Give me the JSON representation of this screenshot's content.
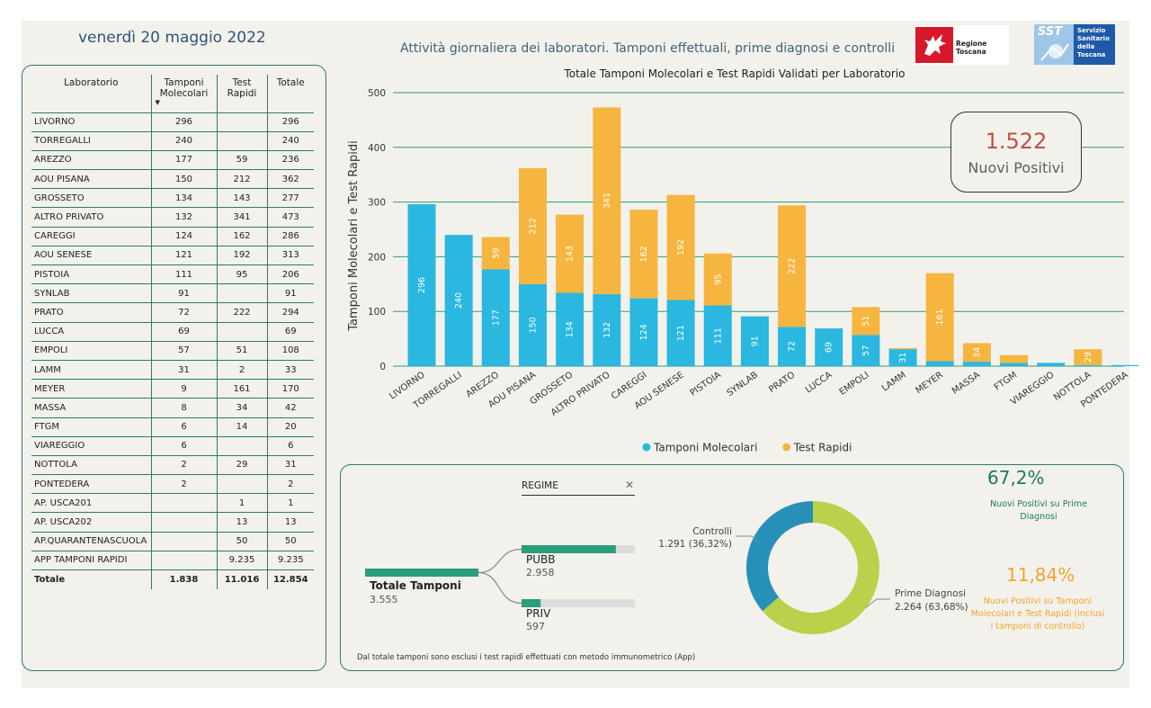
{
  "header": {
    "date": "venerdì 20 maggio 2022",
    "title": "Attività giornaliera dei laboratori. Tamponi effettuali, prime diagnosi e controlli",
    "logo_rt": "Regione Toscana",
    "logo_sst_short": "SST",
    "logo_sst_lines": [
      "Servizio",
      "Sanitario",
      "della",
      "Toscana"
    ]
  },
  "table": {
    "headers": [
      "Laboratorio",
      "Tamponi Molecolari",
      "Test Rapidi",
      "Totale"
    ],
    "rows": [
      [
        "LIVORNO",
        "296",
        "",
        "296"
      ],
      [
        "TORREGALLI",
        "240",
        "",
        "240"
      ],
      [
        "AREZZO",
        "177",
        "59",
        "236"
      ],
      [
        "AOU PISANA",
        "150",
        "212",
        "362"
      ],
      [
        "GROSSETO",
        "134",
        "143",
        "277"
      ],
      [
        "ALTRO PRIVATO",
        "132",
        "341",
        "473"
      ],
      [
        "CAREGGI",
        "124",
        "162",
        "286"
      ],
      [
        "AOU SENESE",
        "121",
        "192",
        "313"
      ],
      [
        "PISTOIA",
        "111",
        "95",
        "206"
      ],
      [
        "SYNLAB",
        "91",
        "",
        "91"
      ],
      [
        "PRATO",
        "72",
        "222",
        "294"
      ],
      [
        "LUCCA",
        "69",
        "",
        "69"
      ],
      [
        "EMPOLI",
        "57",
        "51",
        "108"
      ],
      [
        "LAMM",
        "31",
        "2",
        "33"
      ],
      [
        "MEYER",
        "9",
        "161",
        "170"
      ],
      [
        "MASSA",
        "8",
        "34",
        "42"
      ],
      [
        "FTGM",
        "6",
        "14",
        "20"
      ],
      [
        "VIAREGGIO",
        "6",
        "",
        "6"
      ],
      [
        "NOTTOLA",
        "2",
        "29",
        "31"
      ],
      [
        "PONTEDERA",
        "2",
        "",
        "2"
      ],
      [
        "AP. USCA201",
        "",
        "1",
        "1"
      ],
      [
        "AP. USCA202",
        "",
        "13",
        "13"
      ],
      [
        "AP.QUARANTENASCUOLA",
        "",
        "50",
        "50"
      ],
      [
        "APP TAMPONI RAPIDI",
        "",
        "9.235",
        "9.235"
      ]
    ],
    "total": [
      "Totale",
      "1.838",
      "11.016",
      "12.854"
    ]
  },
  "chart_data": [
    {
      "type": "bar",
      "stacked": true,
      "title": "Totale Tamponi Molecolari e Test Rapidi Validati per Laboratorio",
      "xlabel": "",
      "ylabel": "Tamponi Molecolari e Test Rapidi",
      "ylim": [
        0,
        500
      ],
      "yticks": [
        0,
        100,
        200,
        300,
        400,
        500
      ],
      "grid": true,
      "legend": "bottom",
      "categories": [
        "LIVORNO",
        "TORREGALLI",
        "AREZZO",
        "AOU PISANA",
        "GROSSETO",
        "ALTRO PRIVATO",
        "CAREGGI",
        "AOU SENESE",
        "PISTOIA",
        "SYNLAB",
        "PRATO",
        "LUCCA",
        "EMPOLI",
        "LAMM",
        "MEYER",
        "MASSA",
        "FTGM",
        "VIAREGGIO",
        "NOTTOLA",
        "PONTEDERA"
      ],
      "series": [
        {
          "name": "Tamponi Molecolari",
          "color": "#2ab7e0",
          "values": [
            296,
            240,
            177,
            150,
            134,
            132,
            124,
            121,
            111,
            91,
            72,
            69,
            57,
            31,
            9,
            8,
            6,
            6,
            2,
            2
          ],
          "labels": [
            "296",
            "240",
            "177",
            "150",
            "134",
            "132",
            "124",
            "121",
            "111",
            "91",
            "72",
            "69",
            "57",
            "31",
            "",
            "",
            "",
            "",
            "",
            ""
          ]
        },
        {
          "name": "Test Rapidi",
          "color": "#f6b53f",
          "values": [
            0,
            0,
            59,
            212,
            143,
            341,
            162,
            192,
            95,
            0,
            222,
            0,
            51,
            2,
            161,
            34,
            14,
            0,
            29,
            0
          ],
          "labels": [
            "",
            "",
            "59",
            "212",
            "143",
            "341",
            "162",
            "192",
            "95",
            "",
            "222",
            "",
            "51",
            "",
            "161",
            "34",
            "",
            "",
            "29",
            ""
          ]
        }
      ]
    },
    {
      "type": "pie",
      "donut": true,
      "slices": [
        {
          "name": "Controlli",
          "value": 1291,
          "label": "1.291 (36,32%)",
          "color": "#2790b8"
        },
        {
          "name": "Prime Diagnosi",
          "value": 2264,
          "label": "2.264 (63,68%)",
          "color": "#b9d14b"
        }
      ]
    },
    {
      "type": "bar",
      "orientation": "horizontal",
      "root": {
        "label": "Totale Tamponi",
        "value": "3.555"
      },
      "categories": [
        "PUBB",
        "PRIV"
      ],
      "values": [
        2958,
        597
      ],
      "value_labels": [
        "2.958",
        "597"
      ],
      "xlim": [
        0,
        3555
      ],
      "color": "#2a9d7a"
    }
  ],
  "kpi": {
    "value": "1.522",
    "label": "Nuovi Positivi"
  },
  "slicer": {
    "label": "REGIME",
    "clear": "✕"
  },
  "right_kpis": [
    {
      "value": "67,2%",
      "label_lines": [
        "Nuovi Positivi su Prime",
        "Diagnosi"
      ],
      "color": "#1e7a5a"
    },
    {
      "value": "11,84%",
      "label_lines": [
        "Nuovi Positivi su Tamponi",
        "Molecolari e Test Rapidi (inclusi",
        "i tamponi di controllo)"
      ],
      "color": "#f0a52a"
    }
  ],
  "footnote": "Dal totale tamponi sono esclusi i test rapidi effettuati con metodo immunometrico (App)"
}
